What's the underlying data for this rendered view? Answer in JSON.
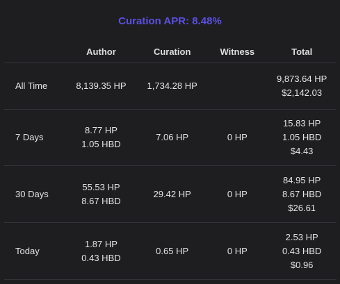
{
  "apr": {
    "label": "Curation APR:",
    "value": "8.48%"
  },
  "headers": {
    "period": "",
    "author": "Author",
    "curation": "Curation",
    "witness": "Witness",
    "total": "Total"
  },
  "rows": [
    {
      "period": "All Time",
      "author": [
        "8,139.35 HP"
      ],
      "curation": [
        "1,734.28 HP"
      ],
      "witness": [],
      "total": [
        "9,873.64 HP",
        "$2,142.03"
      ]
    },
    {
      "period": "7 Days",
      "author": [
        "8.77 HP",
        "1.05 HBD"
      ],
      "curation": [
        "7.06 HP"
      ],
      "witness": [
        "0 HP"
      ],
      "total": [
        "15.83 HP",
        "1.05 HBD",
        "$4.43"
      ]
    },
    {
      "period": "30 Days",
      "author": [
        "55.53 HP",
        "8.67 HBD"
      ],
      "curation": [
        "29.42 HP"
      ],
      "witness": [
        "0 HP"
      ],
      "total": [
        "84.95 HP",
        "8.67 HBD",
        "$26.61"
      ]
    },
    {
      "period": "Today",
      "author": [
        "1.87 HP",
        "0.43 HBD"
      ],
      "curation": [
        "0.65 HP"
      ],
      "witness": [
        "0 HP"
      ],
      "total": [
        "2.53 HP",
        "0.43 HBD",
        "$0.96"
      ]
    }
  ],
  "colors": {
    "background": "#1e1e21",
    "accent": "#5b4fe0",
    "text": "#e4e4e4",
    "divider": "#333337"
  }
}
